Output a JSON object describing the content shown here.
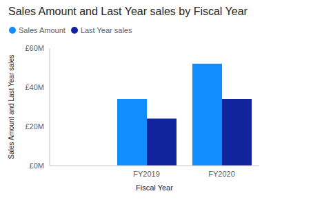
{
  "chart_data": {
    "type": "bar",
    "title": "Sales Amount and Last Year sales by Fiscal Year",
    "x_label": "Fiscal Year",
    "y_label": "Sales Amount and Last Year sales",
    "categories": [
      "FY2019",
      "FY2020"
    ],
    "series": [
      {
        "name": "Sales Amount",
        "color": "#118dff",
        "values": [
          34000000,
          52000000
        ]
      },
      {
        "name": "Last Year sales",
        "color": "#12239e",
        "values": [
          24000000,
          34000000
        ]
      }
    ],
    "ylim": [
      0,
      60000000
    ],
    "yticks": [
      {
        "value": 0,
        "label": "£0M"
      },
      {
        "value": 20000000,
        "label": "£20M"
      },
      {
        "value": 40000000,
        "label": "£40M"
      },
      {
        "value": 60000000,
        "label": "£60M"
      }
    ],
    "grid": false,
    "legend": "top-left"
  }
}
